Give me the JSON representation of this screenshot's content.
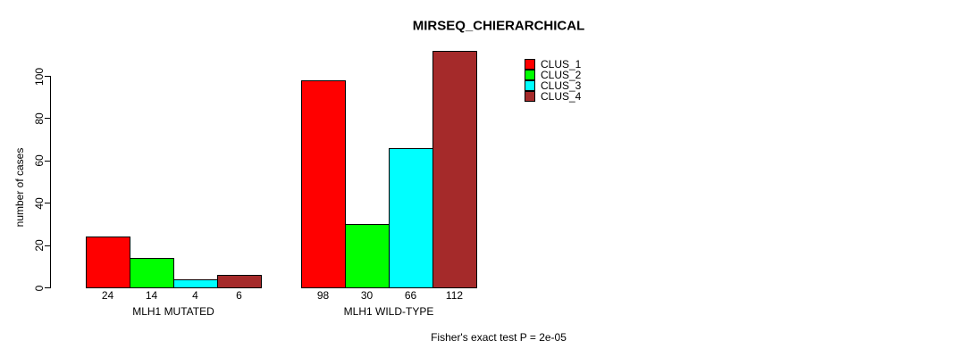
{
  "title": "MIRSEQ_CHIERARCHICAL",
  "chart_data": {
    "type": "bar",
    "title": "MIRSEQ_CHIERARCHICAL",
    "xlabel": "",
    "ylabel": "number of cases",
    "categories": [
      "MLH1 MUTATED",
      "MLH1 WILD-TYPE"
    ],
    "series": [
      {
        "name": "CLUS_1",
        "color": "#FF0000",
        "values": [
          24,
          98
        ]
      },
      {
        "name": "CLUS_2",
        "color": "#00FF00",
        "values": [
          14,
          30
        ]
      },
      {
        "name": "CLUS_3",
        "color": "#00FFFF",
        "values": [
          4,
          66
        ]
      },
      {
        "name": "CLUS_4",
        "color": "#A52A2A",
        "values": [
          6,
          112
        ]
      }
    ],
    "yticks": [
      0,
      20,
      40,
      60,
      80,
      100
    ],
    "ylim": [
      0,
      118
    ],
    "show_value_labels": true,
    "grid": false,
    "legend_position": "top-right",
    "annotation": "Fisher's exact test P = 2e-05"
  }
}
